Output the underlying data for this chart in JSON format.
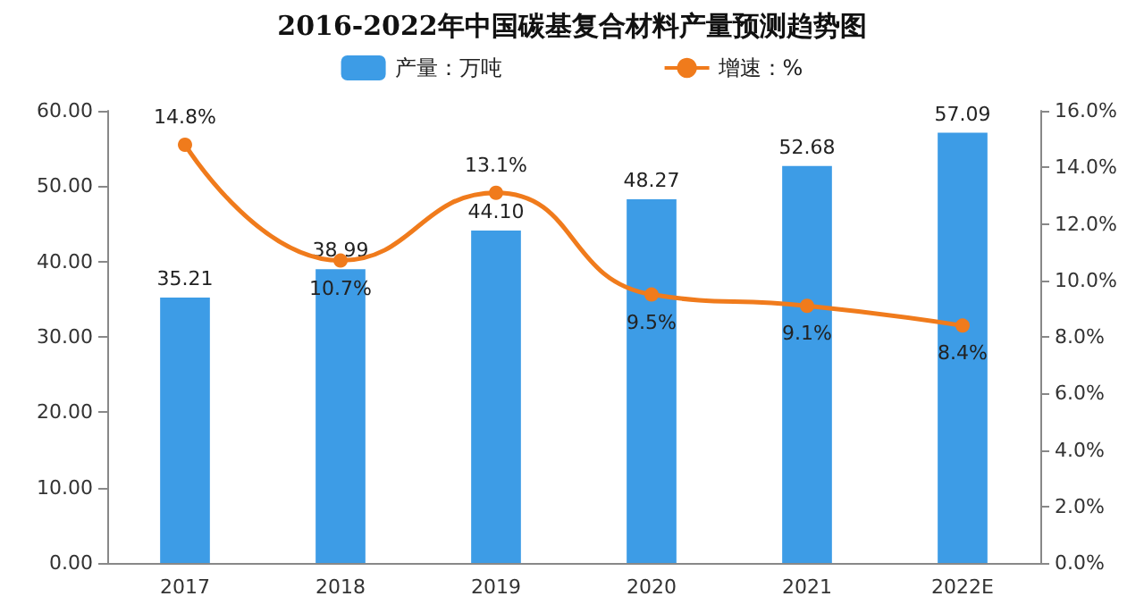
{
  "chart_data": {
    "type": "bar",
    "title": "2016-2022年中国碳基复合材料产量预测趋势图",
    "categories": [
      "2017",
      "2018",
      "2019",
      "2020",
      "2021",
      "2022E"
    ],
    "series": [
      {
        "name": "产量：万吨",
        "color": "#3d9ce6",
        "values": [
          35.21,
          38.99,
          44.1,
          48.27,
          52.68,
          57.09
        ],
        "value_labels": [
          "35.21",
          "38.99",
          "44.10",
          "48.27",
          "52.68",
          "57.09"
        ]
      },
      {
        "name": "增速：%",
        "type": "line",
        "axis": "y2",
        "color": "#f07b1c",
        "marker": "circle",
        "values": [
          14.8,
          10.7,
          13.1,
          9.5,
          9.1,
          8.4
        ],
        "value_labels": [
          "14.8%",
          "10.7%",
          "13.1%",
          "9.5%",
          "9.1%",
          "8.4%"
        ]
      }
    ],
    "ylim": [
      0,
      60
    ],
    "yticks": [
      {
        "value": 0,
        "label": "0.00"
      },
      {
        "value": 10,
        "label": "10.00"
      },
      {
        "value": 20,
        "label": "20.00"
      },
      {
        "value": 30,
        "label": "30.00"
      },
      {
        "value": 40,
        "label": "40.00"
      },
      {
        "value": 50,
        "label": "50.00"
      },
      {
        "value": 60,
        "label": "60.00"
      }
    ],
    "y2lim": [
      0,
      16
    ],
    "y2ticks": [
      {
        "value": 0,
        "label": "0.0%"
      },
      {
        "value": 2,
        "label": "2.0%"
      },
      {
        "value": 4,
        "label": "4.0%"
      },
      {
        "value": 6,
        "label": "6.0%"
      },
      {
        "value": 8,
        "label": "8.0%"
      },
      {
        "value": 10,
        "label": "10.0%"
      },
      {
        "value": 12,
        "label": "12.0%"
      },
      {
        "value": 14,
        "label": "14.0%"
      },
      {
        "value": 16,
        "label": "16.0%"
      }
    ],
    "legend": "top",
    "grid": false
  }
}
